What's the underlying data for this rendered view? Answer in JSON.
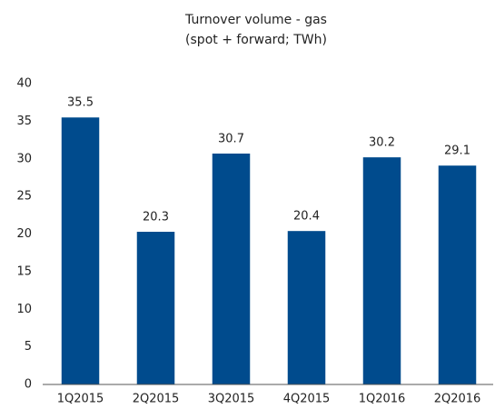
{
  "chart_data": {
    "type": "bar",
    "title": "Turnover volume - gas",
    "subtitle": "(spot + forward; TWh)",
    "categories": [
      "1Q2015",
      "2Q2015",
      "3Q2015",
      "4Q2015",
      "1Q2016",
      "2Q2016"
    ],
    "values": [
      35.5,
      20.3,
      30.7,
      20.4,
      30.2,
      29.1
    ],
    "color": "#004b8d",
    "ylim": [
      0,
      40
    ],
    "yticks": [
      0,
      5,
      10,
      15,
      20,
      25,
      30,
      35,
      40
    ],
    "grid": false
  }
}
